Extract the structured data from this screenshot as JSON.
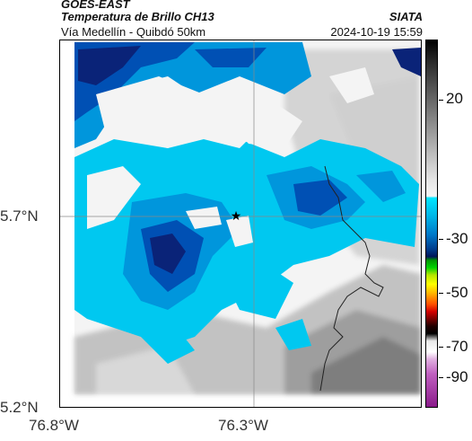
{
  "header": {
    "satellite": "GOES-EAST",
    "product": "Temperatura de Brillo CH13",
    "route": "Vía Medellín - Quibdó 50km",
    "organization": "SIATA",
    "datetime": "2024-10-19 15:59"
  },
  "axes": {
    "lat_ticks": [
      "5.7°N",
      "5.2°N"
    ],
    "lon_ticks": [
      "76.8°W",
      "76.3°W"
    ]
  },
  "colorbar": {
    "ticks": [
      "20",
      "-30",
      "-50",
      "-70",
      "-90"
    ]
  },
  "map": {
    "marker": "star-marker",
    "colors": {
      "cloud_light": "#00c8f0",
      "cloud_mid": "#0096dc",
      "cloud_deep": "#0050b4",
      "cloud_core": "#0a2378",
      "clear_land": "#9a9a9a",
      "border_line": "#222222"
    }
  }
}
